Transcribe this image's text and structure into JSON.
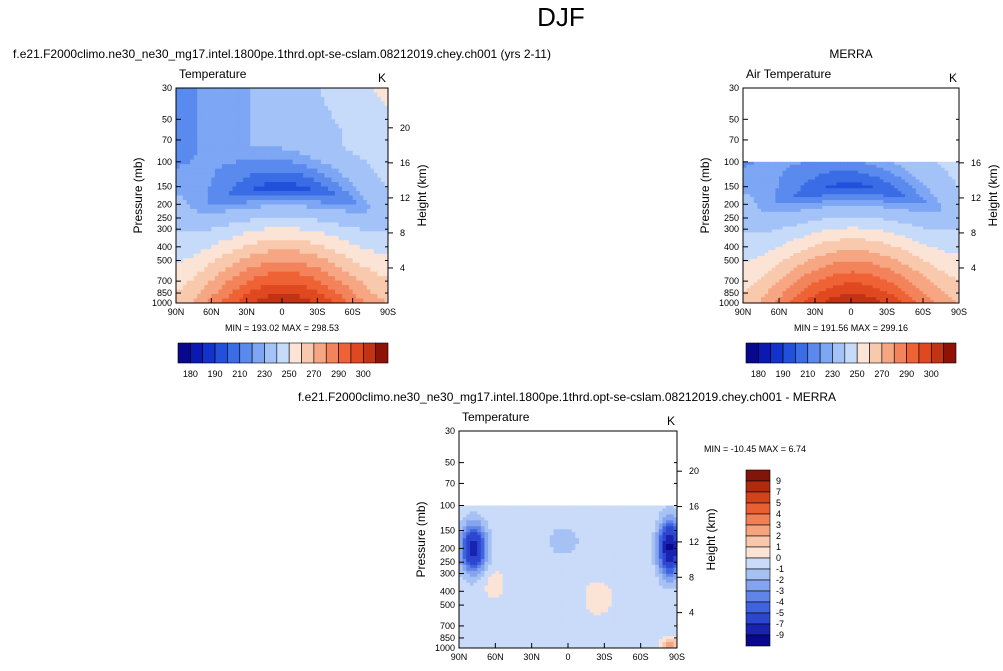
{
  "figure": {
    "title": "DJF",
    "colors": {
      "temperature_scale": [
        "#08088c",
        "#0a1ab0",
        "#1232cc",
        "#2150dc",
        "#3a6ce6",
        "#5a8aee",
        "#7da6f4",
        "#a3c2f8",
        "#c6daf9",
        "#fbe4d5",
        "#f9c9ad",
        "#f6a682",
        "#f3835a",
        "#ee6235",
        "#e04820",
        "#c23214",
        "#8e1306"
      ],
      "difference_scale": [
        "#08088c",
        "#1a22b0",
        "#2d46d0",
        "#3f63e0",
        "#6084e8",
        "#84a4ee",
        "#a6c1f4",
        "#c9dbf9",
        "#fbe4d5",
        "#f9c7ab",
        "#f5a47e",
        "#f08156",
        "#e85f33",
        "#d4421c",
        "#b02a0e",
        "#80150a"
      ]
    }
  },
  "panels": [
    {
      "id": "model",
      "title": "f.e21.F2000climo.ne30_ne30_mg17.intel.1800pe.1thrd.opt-se-cslam.08212019.chey.ch001 (yrs 2-11)",
      "left_label": "Temperature",
      "right_label": "K",
      "stats": "MIN = 193.02  MAX = 298.53"
    },
    {
      "id": "obs",
      "title": "MERRA",
      "left_label": "Air Temperature",
      "right_label": "K",
      "stats": "MIN = 191.56  MAX = 299.16"
    },
    {
      "id": "diff",
      "title": "f.e21.F2000climo.ne30_ne30_mg17.intel.1800pe.1thrd.opt-se-cslam.08212019.chey.ch001 - MERRA",
      "left_label": "Temperature",
      "right_label": "K",
      "stats": "MIN = -10.45  MAX =   6.74"
    }
  ],
  "chart_data": [
    {
      "type": "heatmap",
      "title": "f.e21.F2000climo.ne30_ne30_mg17.intel.1800pe.1thrd.opt-se-cslam.08212019.chey.ch001 (yrs 2-11)",
      "variable": "Temperature",
      "units": "K",
      "xlabel": "",
      "ylabel": "Pressure (mb)",
      "y2label": "Height (km)",
      "x_ticks": [
        "90N",
        "60N",
        "30N",
        "0",
        "30S",
        "60S",
        "90S"
      ],
      "y_ticks": [
        30,
        50,
        70,
        100,
        150,
        200,
        250,
        300,
        400,
        500,
        700,
        850,
        1000
      ],
      "y2_ticks": [
        20,
        16,
        12,
        8,
        4
      ],
      "ylim": [
        1000,
        30
      ],
      "min": 193.02,
      "max": 298.53,
      "colorbar_labels": [
        "180",
        "190",
        "210",
        "230",
        "250",
        "270",
        "290",
        "300"
      ]
    },
    {
      "type": "heatmap",
      "title": "MERRA",
      "variable": "Air Temperature",
      "units": "K",
      "xlabel": "",
      "ylabel": "Pressure (mb)",
      "y2label": "Height (km)",
      "x_ticks": [
        "90N",
        "60N",
        "30N",
        "0",
        "30S",
        "60S",
        "90S"
      ],
      "y_ticks": [
        30,
        50,
        70,
        100,
        150,
        200,
        250,
        300,
        400,
        500,
        700,
        850,
        1000
      ],
      "y2_ticks": [
        16,
        12,
        8,
        4
      ],
      "ylim": [
        1000,
        30
      ],
      "data_top_pressure": 100,
      "min": 191.56,
      "max": 299.16,
      "colorbar_labels": [
        "180",
        "190",
        "210",
        "230",
        "250",
        "270",
        "290",
        "300"
      ]
    },
    {
      "type": "heatmap",
      "title": "f.e21.F2000climo.ne30_ne30_mg17.intel.1800pe.1thrd.opt-se-cslam.08212019.chey.ch001 - MERRA",
      "variable": "Temperature",
      "units": "K",
      "xlabel": "",
      "ylabel": "Pressure (mb)",
      "y2label": "Height (km)",
      "x_ticks": [
        "90N",
        "60N",
        "30N",
        "0",
        "30S",
        "60S",
        "90S"
      ],
      "y_ticks": [
        30,
        50,
        70,
        100,
        150,
        200,
        250,
        300,
        400,
        500,
        700,
        850,
        1000
      ],
      "y2_ticks": [
        20,
        16,
        12,
        8,
        4
      ],
      "ylim": [
        1000,
        30
      ],
      "data_top_pressure": 100,
      "min": -10.45,
      "max": 6.74,
      "colorbar_labels": [
        "9",
        "7",
        "5",
        "4",
        "3",
        "2",
        "1",
        "0",
        "-1",
        "-2",
        "-3",
        "-4",
        "-5",
        "-7",
        "-9"
      ]
    }
  ]
}
